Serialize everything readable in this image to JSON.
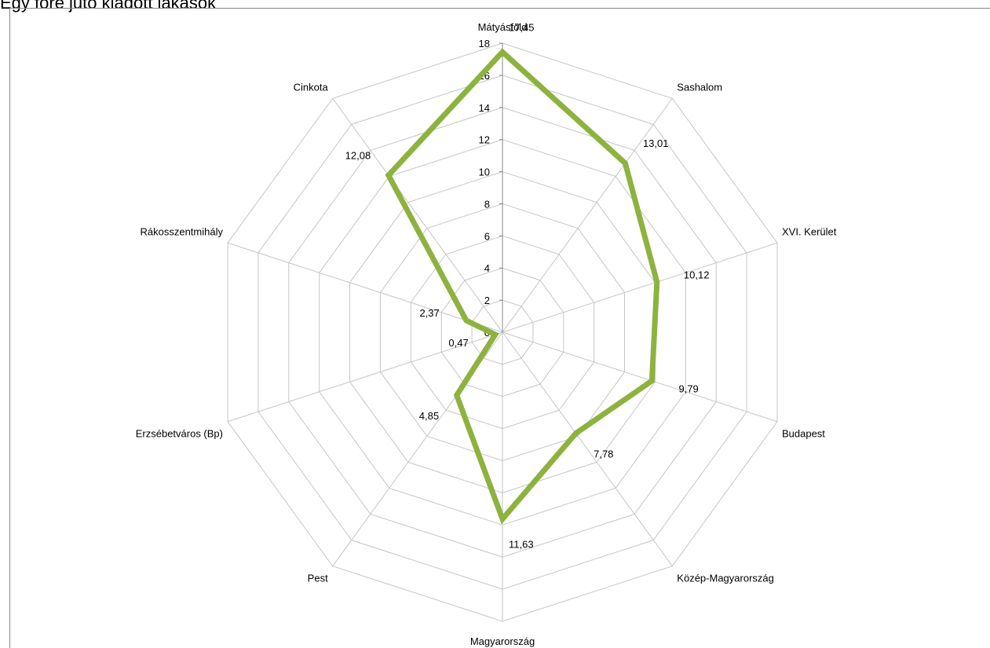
{
  "page": {
    "heading": "Egy főre jutó kiadott lakások"
  },
  "chart_data": {
    "type": "radar",
    "title": "",
    "categories": [
      "Mátyásföld",
      "Sashalom",
      "XVI. Kerület",
      "Budapest",
      "Közép-Magyarország",
      "Magyarország",
      "Pest",
      "Erzsébetváros (Bp)",
      "Rákosszentmihály",
      "Cinkota"
    ],
    "series": [
      {
        "values": [
          17.45,
          13.01,
          10.12,
          9.79,
          7.78,
          11.63,
          4.85,
          0.47,
          2.37,
          12.08
        ],
        "value_labels": [
          "17,45",
          "13,01",
          "10,12",
          "9,79",
          "7,78",
          "11,63",
          "4,85",
          "0,47",
          "2,37",
          "12,08"
        ],
        "color": "#8db33f"
      }
    ],
    "radial_axis": {
      "min": 0,
      "max": 18,
      "step": 2,
      "ticks": [
        "0",
        "2",
        "4",
        "6",
        "8",
        "10",
        "12",
        "14",
        "16",
        "18"
      ]
    },
    "grid": true,
    "legend": "none",
    "grid_color": "#c6c6c6"
  }
}
